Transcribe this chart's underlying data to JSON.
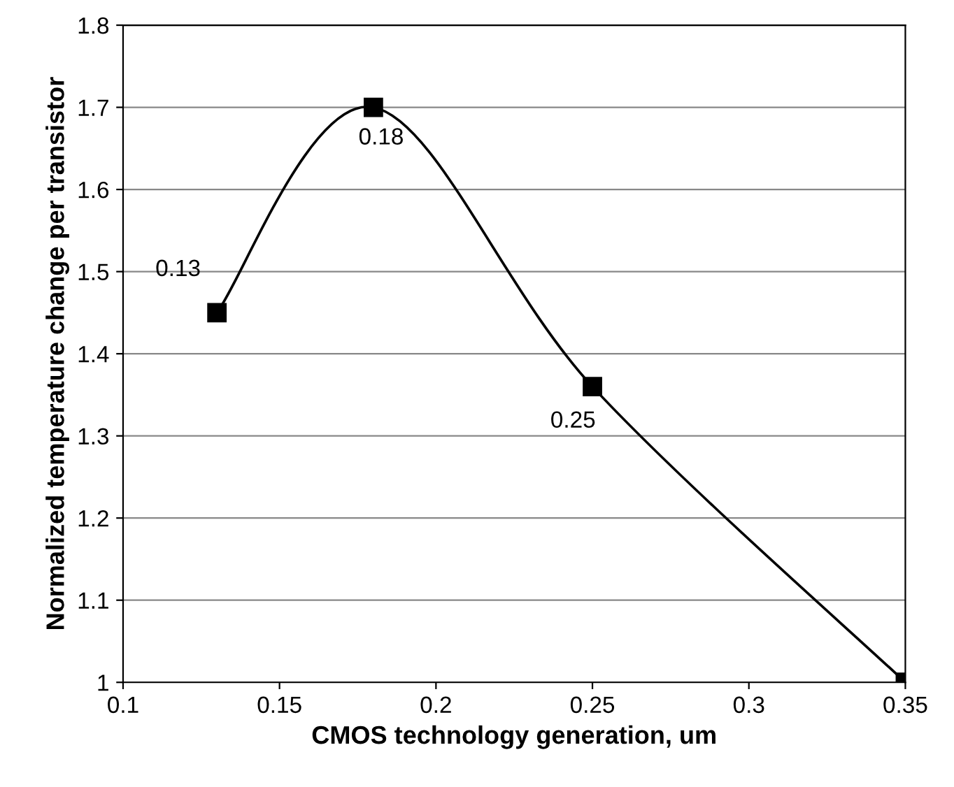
{
  "chart_data": {
    "type": "line",
    "xlabel": "CMOS technology generation, um",
    "ylabel": "Normalized temperature change per transistor",
    "series": [
      {
        "color": "#000000",
        "x": [
          0.13,
          0.18,
          0.25,
          0.35
        ],
        "values": [
          1.45,
          1.7,
          1.36,
          1.0
        ]
      }
    ],
    "marker": "square",
    "line_style": "solid",
    "grid": "y",
    "legend": false,
    "xlim": [
      0.1,
      0.35
    ],
    "xticks": [
      0.1,
      0.15,
      0.2,
      0.25,
      0.3,
      0.35
    ],
    "ylim": [
      1,
      1.8
    ],
    "yticks": [
      1,
      1.1,
      1.2,
      1.3,
      1.4,
      1.5,
      1.6,
      1.7,
      1.8
    ],
    "annotations": [
      {
        "text": "0.13",
        "x": 0.13,
        "y": 1.45
      },
      {
        "text": "0.18",
        "x": 0.18,
        "y": 1.7
      },
      {
        "text": "0.25",
        "x": 0.25,
        "y": 1.36
      }
    ]
  }
}
